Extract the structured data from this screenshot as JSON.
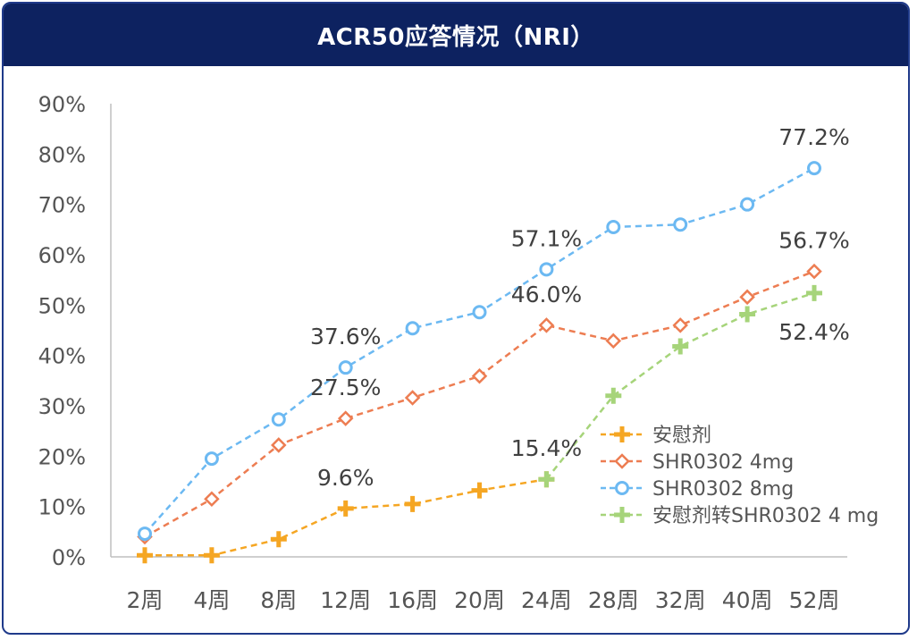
{
  "title": "ACR50应答情况（NRI）",
  "colors": {
    "title_bg": "#0d2260",
    "frame": "#1f3a8a",
    "axis": "#bfbfbf"
  },
  "chart_data": {
    "type": "line",
    "title": "ACR50应答情况（NRI）",
    "categories": [
      "2周",
      "4周",
      "8周",
      "12周",
      "16周",
      "20周",
      "24周",
      "28周",
      "32周",
      "40周",
      "52周"
    ],
    "y_ticks": [
      "0%",
      "10%",
      "20%",
      "30%",
      "40%",
      "50%",
      "60%",
      "70%",
      "80%",
      "90%"
    ],
    "ylim": [
      0,
      90
    ],
    "grid": false,
    "legend_position": "right",
    "series": [
      {
        "name": "安慰剂",
        "color": "#f5a623",
        "marker": "plus",
        "values": [
          0.3,
          0.3,
          3.5,
          9.6,
          10.5,
          13.2,
          15.4,
          null,
          null,
          null,
          null
        ]
      },
      {
        "name": "SHR0302 4mg",
        "color": "#ed7d52",
        "marker": "diamond",
        "values": [
          4.0,
          11.5,
          22.2,
          27.5,
          31.6,
          35.9,
          46.0,
          42.9,
          46.0,
          51.6,
          56.7
        ]
      },
      {
        "name": "SHR0302 8mg",
        "color": "#6cb9f2",
        "marker": "circle",
        "values": [
          4.6,
          19.5,
          27.3,
          37.6,
          45.4,
          48.6,
          57.1,
          65.5,
          66.0,
          70.0,
          77.2
        ]
      },
      {
        "name": "安慰剂转SHR0302 4 mg",
        "color": "#a6d47a",
        "marker": "plus",
        "values": [
          null,
          null,
          null,
          null,
          null,
          null,
          15.4,
          32.0,
          41.8,
          48.2,
          52.4
        ]
      }
    ],
    "data_labels": [
      {
        "series": 0,
        "index": 3,
        "text": "9.6%",
        "pos": "above"
      },
      {
        "series": 0,
        "index": 6,
        "text": "15.4%",
        "pos": "above"
      },
      {
        "series": 1,
        "index": 3,
        "text": "27.5%",
        "pos": "above"
      },
      {
        "series": 1,
        "index": 6,
        "text": "46.0%",
        "pos": "above"
      },
      {
        "series": 1,
        "index": 10,
        "text": "56.7%",
        "pos": "above"
      },
      {
        "series": 2,
        "index": 3,
        "text": "37.6%",
        "pos": "above"
      },
      {
        "series": 2,
        "index": 6,
        "text": "57.1%",
        "pos": "above"
      },
      {
        "series": 2,
        "index": 10,
        "text": "77.2%",
        "pos": "above"
      },
      {
        "series": 3,
        "index": 10,
        "text": "52.4%",
        "pos": "below"
      }
    ]
  }
}
